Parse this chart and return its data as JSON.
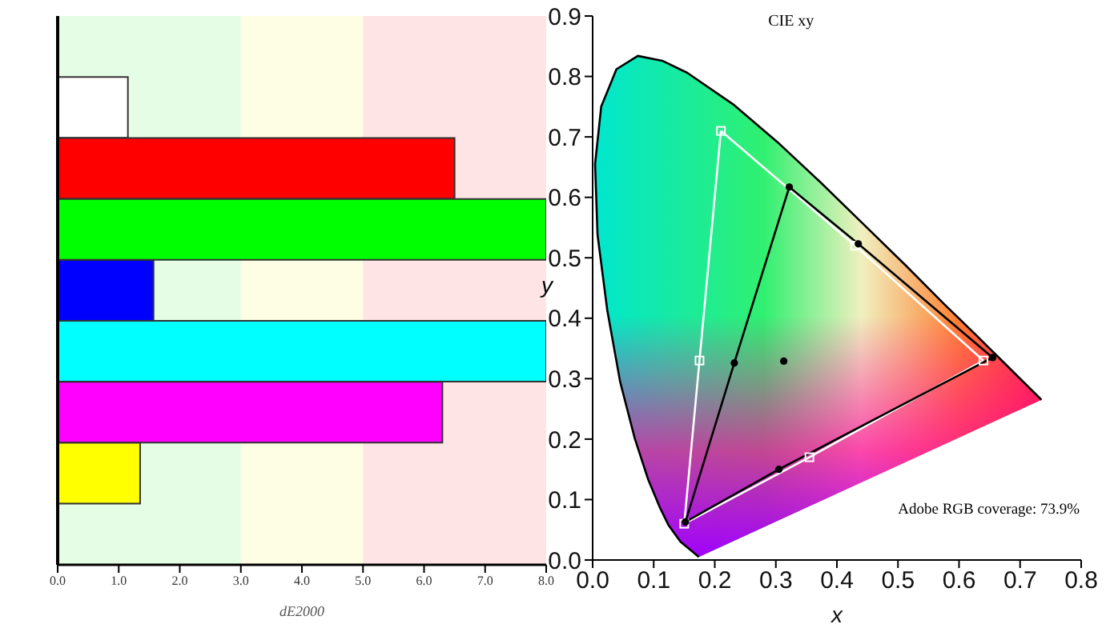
{
  "chart_data": [
    {
      "type": "bar",
      "orientation": "horizontal",
      "xlabel": "dE2000",
      "categories": [
        null,
        null,
        null,
        null,
        null,
        null,
        null,
        null,
        null
      ],
      "values": [
        null,
        1.15,
        6.5,
        8.0,
        1.57,
        8.0,
        6.3,
        1.35,
        null
      ],
      "colors": [
        "#ffffff",
        "#ffffff",
        "#ff0000",
        "#00ff00",
        "#0000ff",
        "#00ffff",
        "#ff00ff",
        "#ffff00",
        "#ffffff"
      ],
      "xlim": [
        0,
        8
      ],
      "xticks": [
        {
          "value": 0,
          "label": "0.0"
        },
        {
          "value": 1,
          "label": "1.0"
        },
        {
          "value": 2,
          "label": "2.0"
        },
        {
          "value": 3,
          "label": "3.0"
        },
        {
          "value": 4,
          "label": "4.0"
        },
        {
          "value": 5,
          "label": "5.0"
        },
        {
          "value": 6,
          "label": "6.0"
        },
        {
          "value": 7,
          "label": "7.0"
        },
        {
          "value": 8,
          "label": "8.0"
        }
      ],
      "bands": [
        {
          "axis": "x",
          "from": 0,
          "to": 3,
          "color": "#e4fde4"
        },
        {
          "axis": "x",
          "from": 3,
          "to": 5,
          "color": "#fefee4"
        },
        {
          "axis": "x",
          "from": 5,
          "to": 8,
          "color": "#fee4e4"
        }
      ]
    },
    {
      "type": "line",
      "title": "CIE xy",
      "xlabel": "x",
      "ylabel": "y",
      "xlim": [
        0,
        0.8
      ],
      "xticks": [
        {
          "value": 0,
          "label": "0.0"
        },
        0.1,
        0.2,
        0.3,
        0.4,
        0.5,
        0.6,
        0.7,
        0.8
      ],
      "ylim": [
        0,
        0.9
      ],
      "yticks": [
        {
          "value": 0,
          "label": "0.0"
        },
        0.1,
        0.2,
        0.3,
        0.4,
        0.5,
        0.6,
        0.7,
        0.8,
        0.9
      ],
      "series": [
        {
          "color": "#000000",
          "marker": "none",
          "x": [
            0.174,
            0.144,
            0.124,
            0.11,
            0.091,
            0.069,
            0.045,
            0.024,
            0.008,
            0.004,
            0.014,
            0.039,
            0.074,
            0.114,
            0.155,
            0.23,
            0.302,
            0.373,
            0.444,
            0.513,
            0.575,
            0.627,
            0.692,
            0.735
          ],
          "values": [
            0.005,
            0.03,
            0.058,
            0.087,
            0.133,
            0.201,
            0.295,
            0.413,
            0.538,
            0.655,
            0.75,
            0.812,
            0.834,
            0.826,
            0.806,
            0.754,
            0.692,
            0.625,
            0.555,
            0.487,
            0.424,
            0.373,
            0.308,
            0.265
          ]
        },
        {
          "type": "line",
          "color": "#ffffff",
          "marker": "none",
          "x": [
            0.21,
            0.43,
            0.64
          ],
          "values": [
            0.71,
            0.52,
            0.33
          ]
        },
        {
          "type": "line",
          "color": "#ffffff",
          "marker": "none",
          "x": [
            0.15,
            0.175,
            0.21
          ],
          "values": [
            0.06,
            0.33,
            0.71
          ]
        },
        {
          "type": "line",
          "color": "#ffffff",
          "marker": "none",
          "x": [
            0.15,
            0.355,
            0.64
          ],
          "values": [
            0.06,
            0.17,
            0.33
          ]
        },
        {
          "type": "scatter",
          "color": "#ffffff",
          "marker": "square",
          "x": [
            0.64,
            0.43,
            0.21,
            0.175,
            0.15,
            0.355
          ],
          "values": [
            0.33,
            0.52,
            0.71,
            0.33,
            0.06,
            0.17
          ]
        },
        {
          "type": "line",
          "color": "#000000",
          "marker": "none",
          "x": [
            0.322,
            0.435,
            0.655
          ],
          "values": [
            0.617,
            0.523,
            0.335
          ]
        },
        {
          "type": "line",
          "color": "#000000",
          "marker": "none",
          "x": [
            0.152,
            0.232,
            0.322
          ],
          "values": [
            0.063,
            0.326,
            0.617
          ]
        },
        {
          "type": "line",
          "color": "#000000",
          "marker": "none",
          "x": [
            0.152,
            0.305,
            0.655
          ],
          "values": [
            0.063,
            0.15,
            0.335
          ]
        },
        {
          "type": "scatter",
          "color": "#000000",
          "marker": "circle",
          "x": [
            0.655,
            0.435,
            0.322,
            0.232,
            0.152,
            0.305
          ],
          "values": [
            0.335,
            0.523,
            0.617,
            0.326,
            0.063,
            0.15
          ]
        },
        {
          "type": "scatter",
          "color": "#000000",
          "marker": "circle",
          "x": [
            0.313
          ],
          "values": [
            0.329
          ]
        }
      ],
      "annotations": [
        "Adobe RGB coverage: 73.9%"
      ]
    }
  ]
}
